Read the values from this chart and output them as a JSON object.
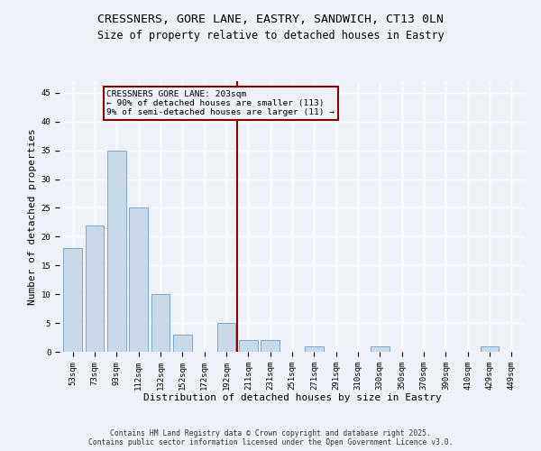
{
  "title1": "CRESSNERS, GORE LANE, EASTRY, SANDWICH, CT13 0LN",
  "title2": "Size of property relative to detached houses in Eastry",
  "xlabel": "Distribution of detached houses by size in Eastry",
  "ylabel": "Number of detached properties",
  "categories": [
    "53sqm",
    "73sqm",
    "93sqm",
    "112sqm",
    "132sqm",
    "152sqm",
    "172sqm",
    "192sqm",
    "211sqm",
    "231sqm",
    "251sqm",
    "271sqm",
    "291sqm",
    "310sqm",
    "330sqm",
    "350sqm",
    "370sqm",
    "390sqm",
    "410sqm",
    "429sqm",
    "449sqm"
  ],
  "values": [
    18,
    22,
    35,
    25,
    10,
    3,
    0,
    5,
    2,
    2,
    0,
    1,
    0,
    0,
    1,
    0,
    0,
    0,
    0,
    1,
    0
  ],
  "bar_color": "#c9d9e8",
  "bar_edge_color": "#7ca8cc",
  "bg_color": "#eef2f8",
  "grid_color": "#ffffff",
  "vline_color": "#8b0000",
  "annotation_text": "CRESSNERS GORE LANE: 203sqm\n← 90% of detached houses are smaller (113)\n9% of semi-detached houses are larger (11) →",
  "annotation_box_color": "#8b0000",
  "ylim": [
    0,
    47
  ],
  "yticks": [
    0,
    5,
    10,
    15,
    20,
    25,
    30,
    35,
    40,
    45
  ],
  "footer": "Contains HM Land Registry data © Crown copyright and database right 2025.\nContains public sector information licensed under the Open Government Licence v3.0.",
  "title_fontsize": 9.5,
  "subtitle_fontsize": 8.5,
  "tick_fontsize": 6.5,
  "label_fontsize": 8,
  "footer_fontsize": 5.8
}
